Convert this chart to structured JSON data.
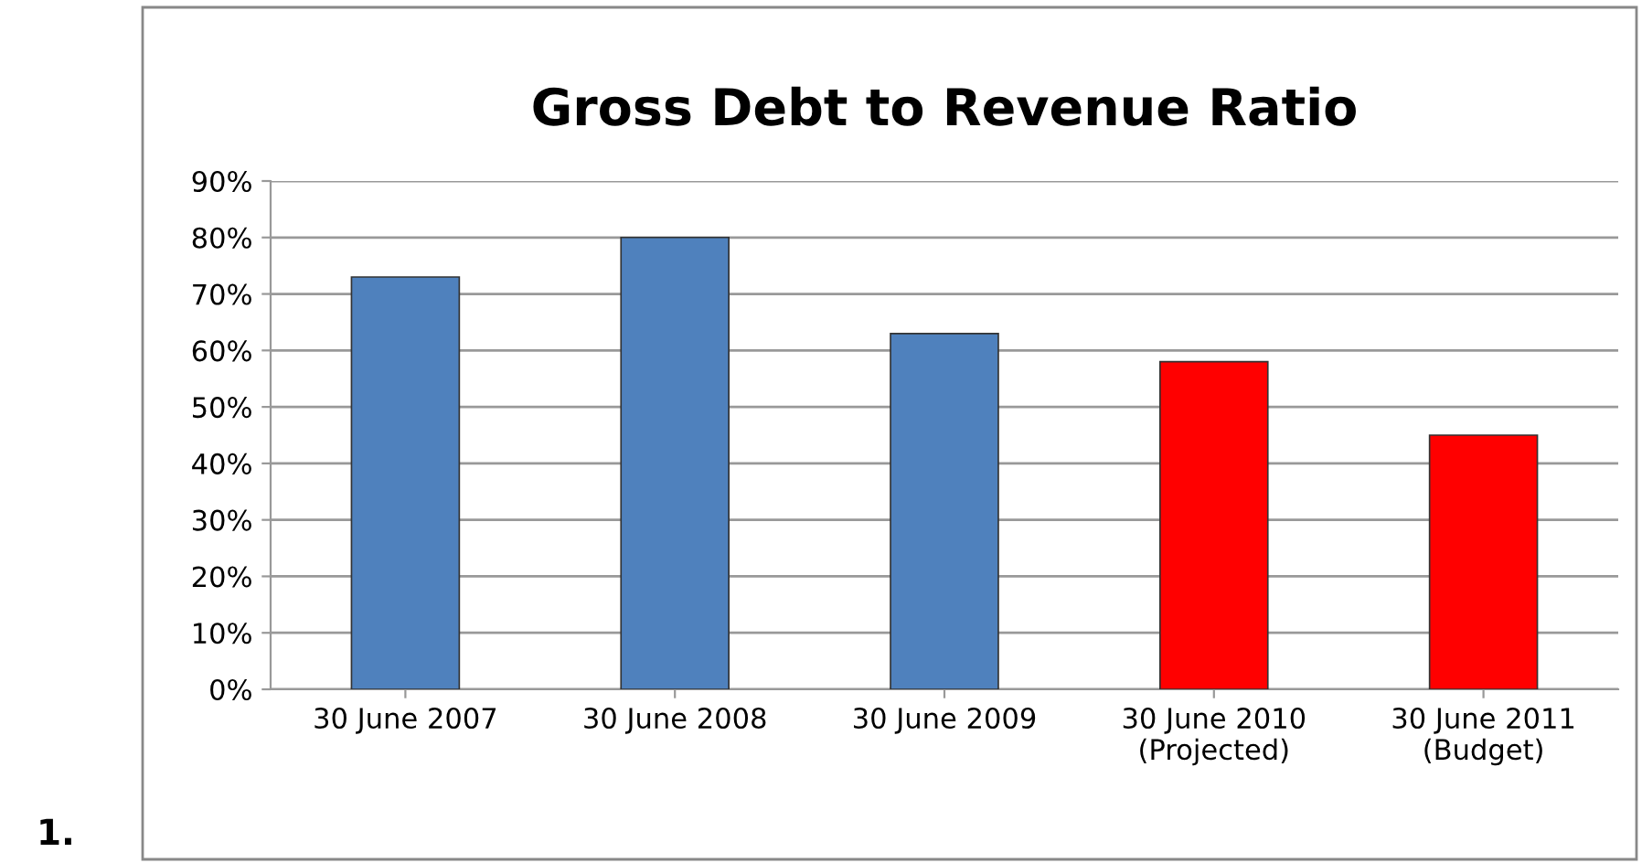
{
  "chart_data": {
    "type": "bar",
    "title": "Gross Debt to Revenue Ratio",
    "categories": [
      "30 June 2007",
      "30 June 2008",
      "30 June 2009",
      "30 June 2010\n(Projected)",
      "30 June 2011\n(Budget)"
    ],
    "values": [
      73,
      80,
      63,
      58,
      45
    ],
    "colors": [
      "#4f81bd",
      "#4f81bd",
      "#4f81bd",
      "#ff0000",
      "#ff0000"
    ],
    "ylim": [
      0,
      90
    ],
    "yticks": [
      {
        "value": 0,
        "label": "0%"
      },
      {
        "value": 10,
        "label": "10%"
      },
      {
        "value": 20,
        "label": "20%"
      },
      {
        "value": 30,
        "label": "30%"
      },
      {
        "value": 40,
        "label": "40%"
      },
      {
        "value": 50,
        "label": "50%"
      },
      {
        "value": 60,
        "label": "60%"
      },
      {
        "value": 70,
        "label": "70%"
      },
      {
        "value": 80,
        "label": "80%"
      },
      {
        "value": 90,
        "label": "90%"
      }
    ],
    "grid": "y",
    "annotations": [
      "1."
    ]
  }
}
